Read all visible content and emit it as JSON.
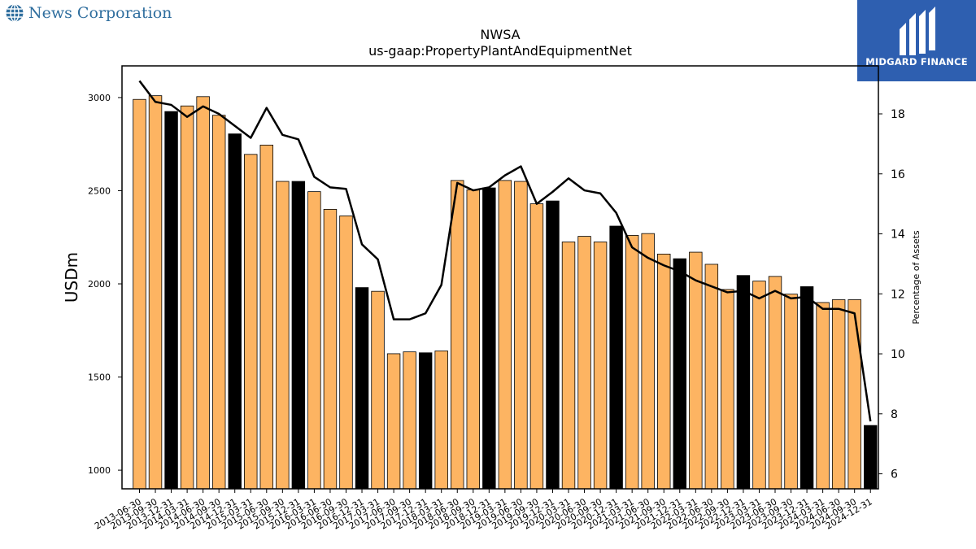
{
  "header": {
    "company": "News Corporation",
    "badge_text": "MIDGARD FINANCE"
  },
  "colors": {
    "bar_default": "#fdb462",
    "bar_highlight": "#000000",
    "line": "#000000",
    "logo_blue": "#2f6e9e",
    "badge_blue": "#2e5fb0"
  },
  "chart_data": {
    "type": "bar",
    "title": "NWSA",
    "subtitle": "us-gaap:PropertyPlantAndEquipmentNet",
    "ylabel": "USDm",
    "y2label": "Percentage of Assets",
    "ylim": [
      900,
      3170
    ],
    "y2lim": [
      5.5,
      19.6
    ],
    "yticks": [
      1000,
      1500,
      2000,
      2500,
      3000
    ],
    "y2ticks": [
      6,
      8,
      10,
      12,
      14,
      16,
      18
    ],
    "grid": false,
    "categories": [
      "2013-06-30",
      "2013-09-30",
      "2013-12-31",
      "2014-03-31",
      "2014-06-30",
      "2014-09-30",
      "2014-12-31",
      "2015-03-31",
      "2015-06-30",
      "2015-09-30",
      "2015-12-31",
      "2016-03-31",
      "2016-06-30",
      "2016-09-30",
      "2016-12-31",
      "2017-03-31",
      "2017-06-30",
      "2017-09-30",
      "2017-12-31",
      "2018-03-31",
      "2018-06-30",
      "2018-09-30",
      "2018-12-31",
      "2019-03-31",
      "2019-06-30",
      "2019-09-30",
      "2019-12-31",
      "2020-03-31",
      "2020-06-30",
      "2020-09-30",
      "2020-12-31",
      "2021-03-31",
      "2021-06-30",
      "2021-09-30",
      "2021-12-31",
      "2022-03-31",
      "2022-06-30",
      "2022-09-30",
      "2022-12-31",
      "2023-03-31",
      "2023-06-30",
      "2023-09-30",
      "2023-12-31",
      "2024-03-31",
      "2024-06-30",
      "2024-09-30",
      "2024-12-31"
    ],
    "series": [
      {
        "type": "bar",
        "axis": "left",
        "values": [
          2990,
          3010,
          2925,
          2955,
          3005,
          2905,
          2805,
          2695,
          2745,
          2550,
          2550,
          2495,
          2400,
          2365,
          1980,
          1960,
          1625,
          1635,
          1630,
          1640,
          2555,
          2505,
          2515,
          2555,
          2550,
          2430,
          2445,
          2225,
          2255,
          2225,
          2310,
          2260,
          2270,
          2160,
          2135,
          2170,
          2105,
          1970,
          2045,
          2015,
          2040,
          1945,
          1985,
          1900,
          1915,
          1915,
          1240
        ],
        "highlight_quarter_end": "12-31"
      },
      {
        "type": "line",
        "axis": "right",
        "values": [
          19.1,
          18.4,
          18.3,
          17.9,
          18.25,
          18.0,
          17.6,
          17.2,
          18.2,
          17.3,
          17.15,
          15.9,
          15.55,
          15.5,
          13.65,
          13.15,
          11.15,
          11.15,
          11.35,
          12.3,
          15.7,
          15.45,
          15.55,
          15.95,
          16.25,
          15.0,
          15.4,
          15.85,
          15.45,
          15.35,
          14.7,
          13.55,
          13.2,
          12.95,
          12.75,
          12.45,
          12.25,
          12.05,
          12.1,
          11.85,
          12.1,
          11.85,
          11.9,
          11.5,
          11.5,
          11.35,
          7.75
        ]
      }
    ]
  }
}
